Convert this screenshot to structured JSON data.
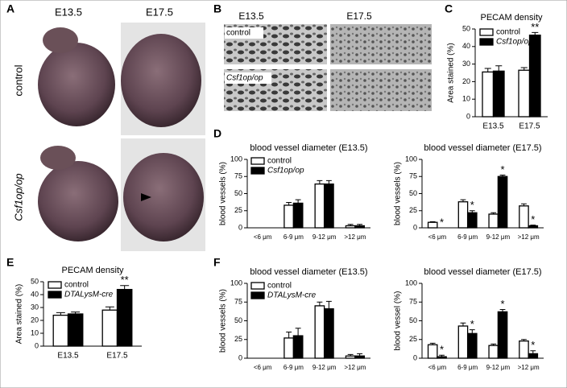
{
  "panel_labels": [
    "A",
    "B",
    "C",
    "D",
    "E",
    "F"
  ],
  "panel_a": {
    "columns": [
      "E13.5",
      "E17.5"
    ],
    "rows": [
      "control",
      "Csf1op/op"
    ]
  },
  "panel_b": {
    "columns": [
      "E13.5",
      "E17.5"
    ],
    "rows": [
      "control",
      "Csf1op/op"
    ]
  },
  "chart_data": [
    {
      "type": "bar",
      "title": "PECAM density",
      "ylabel": "Area stained (%)",
      "categories": [
        "E13.5",
        "E17.5"
      ],
      "series": [
        {
          "name": "control",
          "color": "#ffffff",
          "values": [
            25.5,
            26.5
          ],
          "errors": [
            2,
            1.5
          ]
        },
        {
          "name": "Csf1op/op",
          "color": "#000000",
          "values": [
            26,
            46.5
          ],
          "errors": [
            3,
            1.5
          ],
          "annotations": [
            null,
            "**"
          ]
        }
      ],
      "ylim": [
        0,
        50
      ],
      "yticks": [
        0,
        10,
        20,
        30,
        40,
        50
      ],
      "legend": true
    },
    {
      "type": "bar",
      "title": "blood vessel diameter (E13.5)",
      "ylabel": "blood vessels (%)",
      "categories": [
        "<6 μm",
        "6-9 μm",
        "9-12 μm",
        ">12 μm"
      ],
      "series": [
        {
          "name": "control",
          "color": "#ffffff",
          "values": [
            0,
            33,
            64,
            3
          ],
          "errors": [
            0,
            4,
            5,
            2
          ]
        },
        {
          "name": "Csf1op/op",
          "color": "#000000",
          "values": [
            0,
            36,
            64,
            3
          ],
          "errors": [
            0,
            5,
            5,
            2
          ]
        }
      ],
      "ylim": [
        0,
        100
      ],
      "yticks": [
        0,
        25,
        50,
        75,
        100
      ],
      "legend": true
    },
    {
      "type": "bar",
      "title": "blood vessel diameter (E17.5)",
      "ylabel": "blood vessels (%)",
      "categories": [
        "<6 μm",
        "6-9 μm",
        "9-12 μm",
        ">12 μm"
      ],
      "series": [
        {
          "color": "#ffffff",
          "values": [
            8,
            38,
            20,
            32
          ],
          "errors": [
            1,
            3,
            2,
            3
          ]
        },
        {
          "color": "#000000",
          "values": [
            0,
            22,
            75,
            3
          ],
          "errors": [
            0,
            3,
            2,
            1
          ],
          "annotations": [
            "*",
            "*",
            "*",
            "*"
          ]
        }
      ],
      "ylim": [
        0,
        100
      ],
      "yticks": [
        0,
        25,
        50,
        75,
        100
      ],
      "legend": false
    },
    {
      "type": "bar",
      "title": "PECAM density",
      "ylabel": "Area stained (%)",
      "categories": [
        "E13.5",
        "E17.5"
      ],
      "series": [
        {
          "name": "control",
          "color": "#ffffff",
          "values": [
            24,
            28
          ],
          "errors": [
            2,
            2.5
          ]
        },
        {
          "name": "DTALysM-cre",
          "color": "#000000",
          "values": [
            25,
            44
          ],
          "errors": [
            1.5,
            3
          ],
          "annotations": [
            null,
            "**"
          ]
        }
      ],
      "ylim": [
        0,
        50
      ],
      "yticks": [
        0,
        10,
        20,
        30,
        40,
        50
      ],
      "legend": true
    },
    {
      "type": "bar",
      "title": "blood vessel diameter (E13.5)",
      "ylabel": "blood vessels (%)",
      "categories": [
        "<6 μm",
        "6-9 μm",
        "9-12 μm",
        ">12 μm"
      ],
      "series": [
        {
          "name": "control",
          "color": "#ffffff",
          "values": [
            0,
            27,
            70,
            3
          ],
          "errors": [
            0,
            8,
            5,
            2
          ]
        },
        {
          "name": "DTALysM-cre",
          "color": "#000000",
          "values": [
            0,
            30,
            66,
            3
          ],
          "errors": [
            0,
            10,
            10,
            3
          ]
        }
      ],
      "ylim": [
        0,
        100
      ],
      "yticks": [
        0,
        25,
        50,
        75,
        100
      ],
      "legend": true
    },
    {
      "type": "bar",
      "title": "blood vessel diameter (E17.5)",
      "ylabel": "blood vessel (%)",
      "categories": [
        "<6 μm",
        "6-9 μm",
        "9-12 μm",
        ">12 μm"
      ],
      "series": [
        {
          "color": "#ffffff",
          "values": [
            18,
            43,
            17,
            23
          ],
          "errors": [
            2,
            4,
            2,
            2
          ]
        },
        {
          "color": "#000000",
          "values": [
            2,
            33,
            62,
            6
          ],
          "errors": [
            2,
            5,
            3,
            4
          ],
          "annotations": [
            "*",
            "*",
            "*",
            "*"
          ]
        }
      ],
      "ylim": [
        0,
        100
      ],
      "yticks": [
        0,
        25,
        50,
        75,
        100
      ],
      "legend": false
    }
  ]
}
